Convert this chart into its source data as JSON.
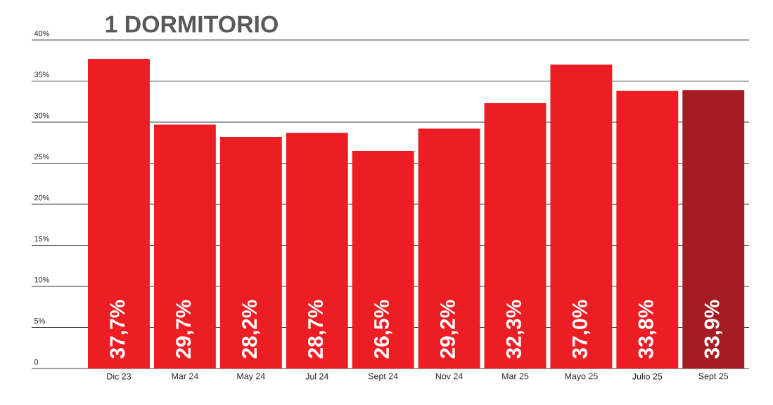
{
  "chart_data": {
    "type": "bar",
    "title": "1 DORMITORIO",
    "categories": [
      "Dic 23",
      "Mar 24",
      "May 24",
      "Jul 24",
      "Sept 24",
      "Nov 24",
      "Mar 25",
      "Mayo 25",
      "Julio 25",
      "Sept 25"
    ],
    "values": [
      37.7,
      29.7,
      28.2,
      28.7,
      26.5,
      29.2,
      32.3,
      37.0,
      33.8,
      33.9
    ],
    "value_labels": [
      "37,7%",
      "29,7%",
      "28,2%",
      "28,7%",
      "26,5%",
      "29,2%",
      "32,3%",
      "37,0%",
      "33,8%",
      "33,9%"
    ],
    "colors": [
      "#ec1e24",
      "#ec1e24",
      "#ec1e24",
      "#ec1e24",
      "#ec1e24",
      "#ec1e24",
      "#ec1e24",
      "#ec1e24",
      "#ec1e24",
      "#a51d23"
    ],
    "ylim": [
      0,
      40
    ],
    "yticks": [
      {
        "value": 0,
        "label": "0"
      },
      {
        "value": 5,
        "label": "5%"
      },
      {
        "value": 10,
        "label": "10%"
      },
      {
        "value": 15,
        "label": "15%"
      },
      {
        "value": 20,
        "label": "20%"
      },
      {
        "value": 25,
        "label": "25%"
      },
      {
        "value": 30,
        "label": "30%"
      },
      {
        "value": 35,
        "label": "35%"
      },
      {
        "value": 40,
        "label": "40%"
      }
    ],
    "grid": "y"
  }
}
